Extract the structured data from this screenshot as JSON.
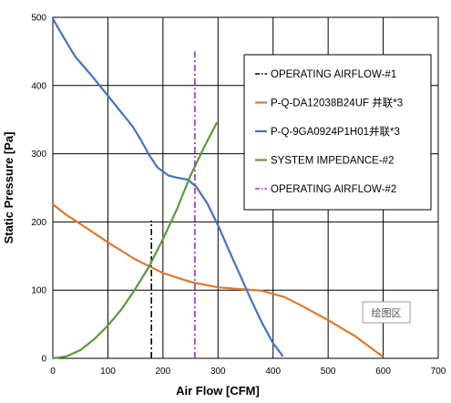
{
  "chart_data": {
    "type": "line",
    "title": "",
    "xlabel": "Air Flow [CFM]",
    "ylabel": "Static Pressure [Pa]",
    "xlim": [
      0,
      700
    ],
    "ylim": [
      0,
      500
    ],
    "x_ticks": [
      "0",
      "100",
      "200",
      "300",
      "400",
      "500",
      "600",
      "700"
    ],
    "y_ticks": [
      "0",
      "100",
      "200",
      "300",
      "400",
      "500"
    ],
    "grid": true,
    "legend_position": "right",
    "plot_area_label": "绘图区",
    "series": [
      {
        "name": "OPERATING AIRFLOW-#1",
        "color": "#000000",
        "style": "dashdot",
        "points": [
          [
            179,
            0
          ],
          [
            179,
            202
          ]
        ]
      },
      {
        "name": "P-Q-DA12038B24UF 并联*3",
        "color": "#e07828",
        "style": "solid",
        "points": [
          [
            0,
            226
          ],
          [
            25,
            210
          ],
          [
            50,
            197
          ],
          [
            100,
            170
          ],
          [
            150,
            145
          ],
          [
            200,
            125
          ],
          [
            250,
            112
          ],
          [
            300,
            104
          ],
          [
            350,
            101
          ],
          [
            380,
            99
          ],
          [
            420,
            90
          ],
          [
            450,
            78
          ],
          [
            500,
            56
          ],
          [
            550,
            32
          ],
          [
            600,
            2
          ]
        ]
      },
      {
        "name": "P-Q-9GA0924P1H01并联*3",
        "color": "#4472c4",
        "style": "solid",
        "points": [
          [
            0,
            498
          ],
          [
            20,
            470
          ],
          [
            40,
            443
          ],
          [
            70,
            415
          ],
          [
            100,
            385
          ],
          [
            120,
            365
          ],
          [
            145,
            340
          ],
          [
            160,
            320
          ],
          [
            175,
            298
          ],
          [
            190,
            280
          ],
          [
            210,
            268
          ],
          [
            225,
            265
          ],
          [
            245,
            262
          ],
          [
            260,
            252
          ],
          [
            280,
            228
          ],
          [
            300,
            195
          ],
          [
            320,
            158
          ],
          [
            340,
            122
          ],
          [
            360,
            86
          ],
          [
            380,
            52
          ],
          [
            400,
            22
          ],
          [
            418,
            3
          ]
        ]
      },
      {
        "name": "SYSTEM IMPEDANCE-#2",
        "color": "#5a9a38",
        "style": "solid",
        "points": [
          [
            0,
            0
          ],
          [
            25,
            3
          ],
          [
            50,
            12
          ],
          [
            75,
            28
          ],
          [
            100,
            48
          ],
          [
            125,
            72
          ],
          [
            150,
            102
          ],
          [
            175,
            135
          ],
          [
            200,
            175
          ],
          [
            225,
            218
          ],
          [
            250,
            268
          ],
          [
            275,
            310
          ],
          [
            298,
            346
          ]
        ]
      },
      {
        "name": "OPERATING AIRFLOW-#2",
        "color": "#9b30c8",
        "style": "dashdot",
        "points": [
          [
            258,
            0
          ],
          [
            258,
            450
          ]
        ]
      }
    ]
  }
}
